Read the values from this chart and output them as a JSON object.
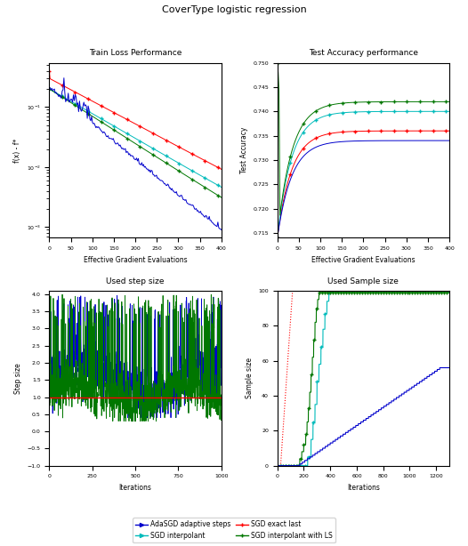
{
  "title": "CoverType logistic regression",
  "subplot_titles": [
    "Train Loss Performance",
    "Test Accuracy performance",
    "Used step size",
    "Used Sample size"
  ],
  "colors": {
    "AdaSGD": "#0000cc",
    "SGD_interp": "#00bbbb",
    "SGD_exact": "#ff0000",
    "SGD_interp_LS": "#007700"
  },
  "legend_labels": [
    "AdaSGD adaptive steps",
    "SGD interpolant",
    "SGD exact last",
    "SGD interpolant with LS"
  ],
  "ax1": {
    "xlabel": "Effective Gradient Evaluations",
    "ylabel": "f(x) - f*",
    "xlim": [
      0,
      400
    ],
    "ylim_log": [
      1e-05,
      1.0
    ]
  },
  "ax2": {
    "xlabel": "Effective Gradient Evaluations",
    "ylabel": "Test Accuracy",
    "xlim": [
      0,
      400
    ],
    "ylim": [
      0.714,
      0.75
    ]
  },
  "ax3": {
    "xlabel": "Iterations",
    "ylabel": "Step size",
    "xlim": [
      0,
      1000
    ],
    "ylim": [
      -1.0,
      4.1
    ],
    "yticks": [
      -1.0,
      -0.5,
      0.0,
      0.5,
      1.0,
      1.5,
      2.0,
      2.5,
      3.0,
      3.5,
      4.0
    ],
    "red_hline": 1.0
  },
  "ax4": {
    "xlabel": "Iterations",
    "ylabel": "Sample size",
    "xlim": [
      0,
      1300
    ],
    "ylim": [
      0,
      100
    ],
    "yticks": [
      0,
      20,
      40,
      60,
      80,
      100
    ]
  }
}
